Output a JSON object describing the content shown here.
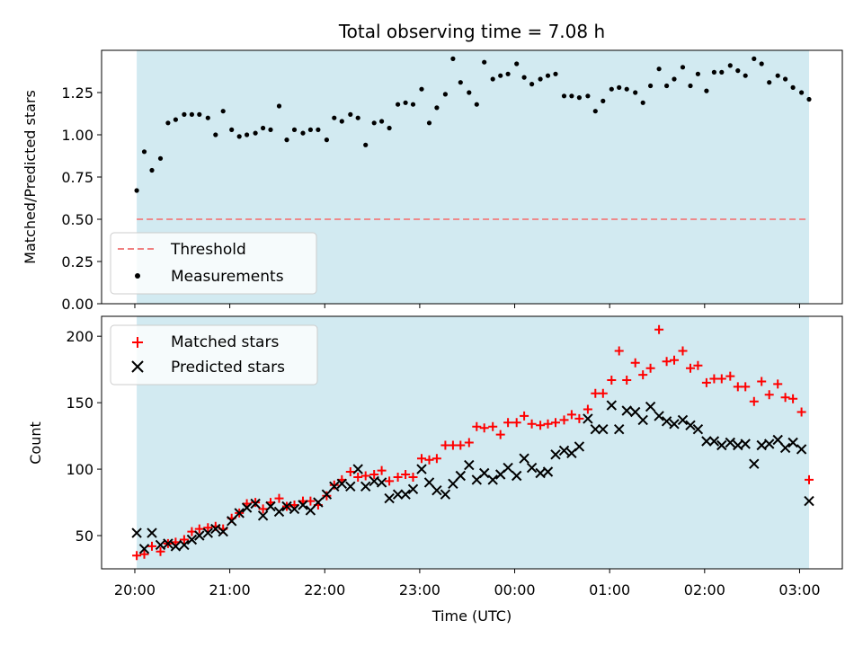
{
  "chart_data": [
    {
      "type": "scatter",
      "title": "Total observing time = 7.08 h",
      "xlabel": "",
      "ylabel": "Matched/Predicted stars",
      "ylim": [
        0,
        1.5
      ],
      "yticks": [
        "0.00",
        "0.25",
        "0.50",
        "0.75",
        "1.00",
        "1.25"
      ],
      "ytick_values": [
        0,
        0.25,
        0.5,
        0.75,
        1.0,
        1.25
      ],
      "x_unit": "hours since 20:00 UTC",
      "xlim": [
        -0.35,
        7.45
      ],
      "observing_window": [
        0.02,
        7.1
      ],
      "legend_position": "lower-left",
      "threshold": {
        "name": "Threshold",
        "value": 0.5,
        "color": "#f08080",
        "style": "dashed"
      },
      "series": [
        {
          "name": "Measurements",
          "color": "#000000",
          "marker": "dot",
          "x": [
            0.02,
            0.1,
            0.18,
            0.27,
            0.35,
            0.43,
            0.52,
            0.6,
            0.68,
            0.77,
            0.85,
            0.93,
            1.02,
            1.1,
            1.18,
            1.27,
            1.35,
            1.43,
            1.52,
            1.6,
            1.68,
            1.77,
            1.85,
            1.93,
            2.02,
            2.1,
            2.18,
            2.27,
            2.35,
            2.43,
            2.52,
            2.6,
            2.68,
            2.77,
            2.85,
            2.93,
            3.02,
            3.1,
            3.18,
            3.27,
            3.35,
            3.43,
            3.52,
            3.6,
            3.68,
            3.77,
            3.85,
            3.93,
            4.02,
            4.1,
            4.18,
            4.27,
            4.35,
            4.43,
            4.52,
            4.6,
            4.68,
            4.77,
            4.85,
            4.93,
            5.02,
            5.1,
            5.18,
            5.27,
            5.35,
            5.43,
            5.52,
            5.6,
            5.68,
            5.77,
            5.85,
            5.93,
            6.02,
            6.1,
            6.18,
            6.27,
            6.35,
            6.43,
            6.52,
            6.6,
            6.68,
            6.77,
            6.85,
            6.93,
            7.02,
            7.1
          ],
          "y": [
            0.67,
            0.9,
            0.79,
            0.86,
            1.07,
            1.09,
            1.12,
            1.12,
            1.12,
            1.1,
            1.0,
            1.14,
            1.03,
            0.99,
            1.0,
            1.01,
            1.04,
            1.03,
            1.17,
            0.97,
            1.03,
            1.01,
            1.03,
            1.03,
            0.97,
            1.1,
            1.08,
            1.12,
            1.1,
            0.94,
            1.07,
            1.08,
            1.04,
            1.18,
            1.19,
            1.18,
            1.27,
            1.07,
            1.16,
            1.24,
            1.45,
            1.31,
            1.25,
            1.18,
            1.43,
            1.33,
            1.35,
            1.36,
            1.42,
            1.34,
            1.3,
            1.33,
            1.35,
            1.36,
            1.23,
            1.23,
            1.22,
            1.23,
            1.14,
            1.2,
            1.27,
            1.28,
            1.27,
            1.25,
            1.19,
            1.29,
            1.39,
            1.29,
            1.33,
            1.4,
            1.29,
            1.36,
            1.26,
            1.37,
            1.37,
            1.41,
            1.38,
            1.35,
            1.45,
            1.42,
            1.31,
            1.35,
            1.33,
            1.28,
            1.25,
            1.21
          ]
        }
      ]
    },
    {
      "type": "scatter",
      "title": "",
      "xlabel": "Time (UTC)",
      "ylabel": "Count",
      "ylim": [
        25,
        215
      ],
      "yticks": [
        "50",
        "100",
        "150",
        "200"
      ],
      "ytick_values": [
        50,
        100,
        150,
        200
      ],
      "xticks": [
        "20:00",
        "21:00",
        "22:00",
        "23:00",
        "00:00",
        "01:00",
        "02:00",
        "03:00"
      ],
      "xtick_values": [
        0,
        1,
        2,
        3,
        4,
        5,
        6,
        7
      ],
      "x_unit": "hours since 20:00 UTC",
      "xlim": [
        -0.35,
        7.45
      ],
      "observing_window": [
        0.02,
        7.1
      ],
      "legend_position": "top-left",
      "series": [
        {
          "name": "Matched stars",
          "color": "#ff0000",
          "marker": "plus",
          "x": [
            0.02,
            0.1,
            0.18,
            0.27,
            0.35,
            0.43,
            0.52,
            0.6,
            0.68,
            0.77,
            0.85,
            0.93,
            1.02,
            1.1,
            1.18,
            1.27,
            1.35,
            1.43,
            1.52,
            1.6,
            1.68,
            1.77,
            1.85,
            1.93,
            2.02,
            2.1,
            2.18,
            2.27,
            2.35,
            2.43,
            2.52,
            2.6,
            2.68,
            2.77,
            2.85,
            2.93,
            3.02,
            3.1,
            3.18,
            3.27,
            3.35,
            3.43,
            3.52,
            3.6,
            3.68,
            3.77,
            3.85,
            3.93,
            4.02,
            4.1,
            4.18,
            4.27,
            4.35,
            4.43,
            4.52,
            4.6,
            4.68,
            4.77,
            4.85,
            4.93,
            5.02,
            5.1,
            5.18,
            5.27,
            5.35,
            5.43,
            5.52,
            5.6,
            5.68,
            5.77,
            5.85,
            5.93,
            6.02,
            6.1,
            6.18,
            6.27,
            6.35,
            6.43,
            6.52,
            6.6,
            6.68,
            6.77,
            6.85,
            6.93,
            7.02,
            7.1
          ],
          "y": [
            35,
            36,
            42,
            38,
            44,
            45,
            47,
            53,
            55,
            56,
            57,
            55,
            63,
            67,
            74,
            75,
            70,
            75,
            78,
            72,
            73,
            76,
            76,
            73,
            80,
            88,
            92,
            98,
            94,
            95,
            96,
            99,
            91,
            94,
            96,
            94,
            108,
            107,
            108,
            118,
            118,
            118,
            120,
            132,
            131,
            132,
            126,
            135,
            135,
            140,
            134,
            133,
            134,
            135,
            137,
            141,
            138,
            145,
            157,
            157,
            167,
            189,
            167,
            180,
            171,
            176,
            205,
            181,
            182,
            189,
            176,
            178,
            165,
            168,
            168,
            170,
            162,
            162,
            151,
            166,
            156,
            164,
            154,
            153,
            143,
            92
          ]
        },
        {
          "name": "Predicted stars",
          "color": "#000000",
          "marker": "x",
          "x": [
            0.02,
            0.1,
            0.18,
            0.27,
            0.35,
            0.43,
            0.52,
            0.6,
            0.68,
            0.77,
            0.85,
            0.93,
            1.02,
            1.1,
            1.18,
            1.27,
            1.35,
            1.43,
            1.52,
            1.6,
            1.68,
            1.77,
            1.85,
            1.93,
            2.02,
            2.1,
            2.18,
            2.27,
            2.35,
            2.43,
            2.52,
            2.6,
            2.68,
            2.77,
            2.85,
            2.93,
            3.02,
            3.1,
            3.18,
            3.27,
            3.35,
            3.43,
            3.52,
            3.6,
            3.68,
            3.77,
            3.85,
            3.93,
            4.02,
            4.1,
            4.18,
            4.27,
            4.35,
            4.43,
            4.52,
            4.6,
            4.68,
            4.77,
            4.85,
            4.93,
            5.02,
            5.1,
            5.18,
            5.27,
            5.35,
            5.43,
            5.52,
            5.6,
            5.68,
            5.77,
            5.85,
            5.93,
            6.02,
            6.1,
            6.18,
            6.27,
            6.35,
            6.43,
            6.52,
            6.6,
            6.68,
            6.77,
            6.85,
            6.93,
            7.02,
            7.1
          ],
          "y": [
            52,
            40,
            52,
            43,
            44,
            42,
            43,
            47,
            50,
            52,
            55,
            53,
            61,
            67,
            71,
            74,
            65,
            72,
            68,
            72,
            70,
            73,
            69,
            75,
            81,
            87,
            89,
            87,
            100,
            87,
            91,
            90,
            78,
            81,
            81,
            85,
            100,
            90,
            84,
            81,
            89,
            95,
            103,
            92,
            97,
            92,
            96,
            101,
            95,
            108,
            101,
            97,
            98,
            111,
            114,
            112,
            117,
            138,
            130,
            130,
            148,
            130,
            144,
            143,
            137,
            147,
            140,
            136,
            134,
            137,
            133,
            130,
            121,
            121,
            118,
            120,
            118,
            119,
            104,
            118,
            119,
            122,
            116,
            120,
            115,
            76
          ]
        }
      ]
    }
  ]
}
